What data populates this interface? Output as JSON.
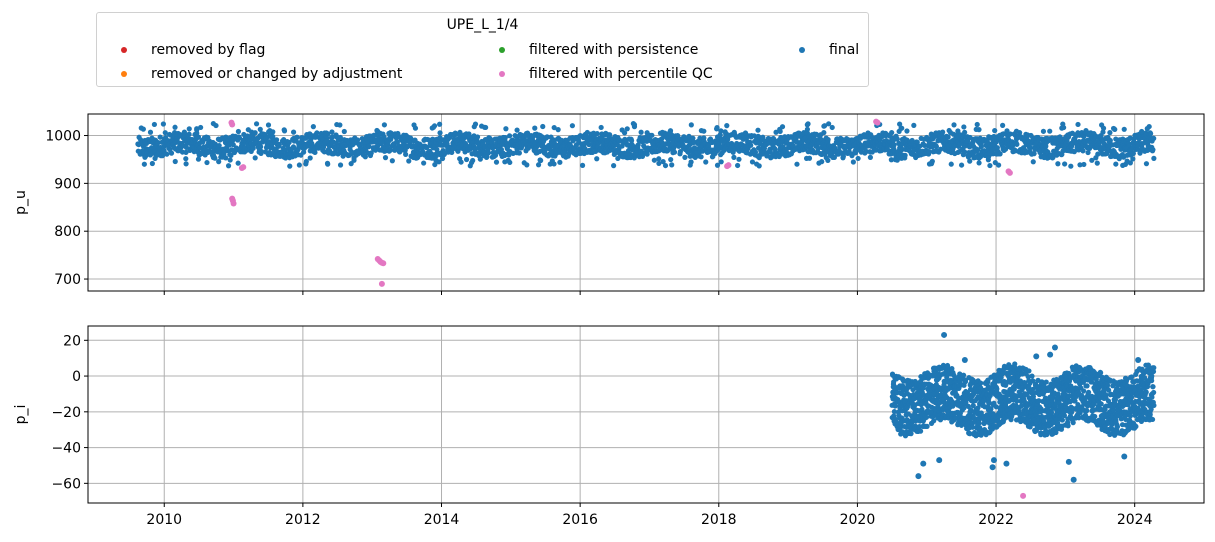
{
  "legend": {
    "title": "UPE_L_1/4",
    "entries": [
      {
        "label": "removed by flag",
        "color": "#d62728"
      },
      {
        "label": "removed or changed by adjustment",
        "color": "#ff7f0e"
      },
      {
        "label": "filtered with persistence",
        "color": "#2ca02c"
      },
      {
        "label": "filtered with percentile QC",
        "color": "#e377c2"
      },
      {
        "label": "final",
        "color": "#1f77b4"
      }
    ]
  },
  "chart_data": [
    {
      "type": "scatter",
      "ylabel": "p_u",
      "xlim": [
        2008.9,
        2025.0
      ],
      "ylim": [
        675,
        1045
      ],
      "yticks": [
        700,
        800,
        900,
        1000
      ],
      "xticks": [
        2010,
        2012,
        2014,
        2016,
        2018,
        2020,
        2022,
        2024
      ],
      "grid": true,
      "series": [
        {
          "name": "final",
          "color": "#1f77b4",
          "x_range": [
            2009.62,
            2024.28
          ],
          "typical_range": [
            955,
            1005
          ],
          "extremes_range": [
            935,
            1025
          ]
        },
        {
          "name": "filtered with percentile QC",
          "color": "#e377c2",
          "points": [
            {
              "x": 2010.97,
              "y": 1027
            },
            {
              "x": 2010.98,
              "y": 1023
            },
            {
              "x": 2010.98,
              "y": 868
            },
            {
              "x": 2010.99,
              "y": 864
            },
            {
              "x": 2011.0,
              "y": 858
            },
            {
              "x": 2011.12,
              "y": 932
            },
            {
              "x": 2011.14,
              "y": 934
            },
            {
              "x": 2013.08,
              "y": 742
            },
            {
              "x": 2013.1,
              "y": 739
            },
            {
              "x": 2013.12,
              "y": 736
            },
            {
              "x": 2013.14,
              "y": 734
            },
            {
              "x": 2013.16,
              "y": 733
            },
            {
              "x": 2013.14,
              "y": 690
            },
            {
              "x": 2018.12,
              "y": 936
            },
            {
              "x": 2018.14,
              "y": 938
            },
            {
              "x": 2020.27,
              "y": 1029
            },
            {
              "x": 2020.29,
              "y": 1027
            },
            {
              "x": 2022.18,
              "y": 925
            },
            {
              "x": 2022.2,
              "y": 922
            }
          ]
        }
      ]
    },
    {
      "type": "scatter",
      "ylabel": "p_i",
      "xlim": [
        2008.9,
        2025.0
      ],
      "ylim": [
        -71,
        28
      ],
      "yticks": [
        -60,
        -40,
        -20,
        0,
        20
      ],
      "xticks": [
        2010,
        2012,
        2014,
        2016,
        2018,
        2020,
        2022,
        2024
      ],
      "xticklabels": [
        "2010",
        "2012",
        "2014",
        "2016",
        "2018",
        "2020",
        "2022",
        "2024"
      ],
      "grid": true,
      "series": [
        {
          "name": "final",
          "color": "#1f77b4",
          "x_range": [
            2020.5,
            2024.28
          ],
          "typical_range": [
            -32,
            5
          ],
          "outliers": [
            {
              "x": 2021.25,
              "y": 23
            },
            {
              "x": 2020.88,
              "y": -56
            },
            {
              "x": 2020.95,
              "y": -49
            },
            {
              "x": 2021.18,
              "y": -47
            },
            {
              "x": 2021.95,
              "y": -51
            },
            {
              "x": 2021.97,
              "y": -47
            },
            {
              "x": 2022.15,
              "y": -49
            },
            {
              "x": 2023.12,
              "y": -58
            },
            {
              "x": 2023.05,
              "y": -48
            },
            {
              "x": 2023.85,
              "y": -45
            },
            {
              "x": 2022.85,
              "y": 16
            },
            {
              "x": 2022.78,
              "y": 12
            },
            {
              "x": 2022.58,
              "y": 11
            },
            {
              "x": 2024.05,
              "y": 9
            },
            {
              "x": 2021.55,
              "y": 9
            }
          ]
        },
        {
          "name": "filtered with percentile QC",
          "color": "#e377c2",
          "points": [
            {
              "x": 2022.39,
              "y": -67
            }
          ]
        }
      ]
    }
  ]
}
